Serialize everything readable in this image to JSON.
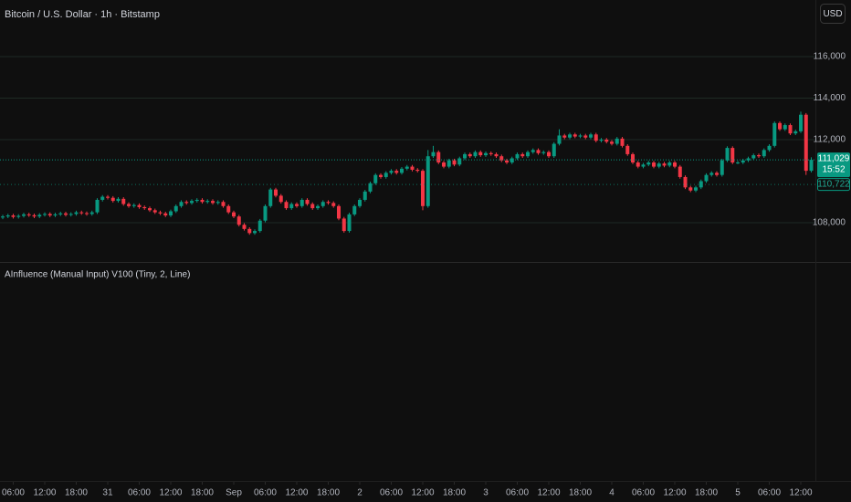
{
  "header": {
    "title": "Bitcoin / U.S. Dollar · 1h · Bitstamp",
    "currency_button": "USD"
  },
  "indicator": {
    "title": "AInfluence (Manual Input) V100 (Tiny, 2, Line)"
  },
  "chart_data": {
    "type": "candlestick",
    "up_color": "#089981",
    "down_color": "#f23645",
    "grid": true,
    "xlim": [
      -0.52,
      154.78
    ],
    "ylim": [
      106110,
      118725
    ],
    "yticks": [
      {
        "value": 116000,
        "label": "116,000"
      },
      {
        "value": 114000,
        "label": "114,000"
      },
      {
        "value": 112000,
        "label": "112,000"
      },
      {
        "value": 108000,
        "label": "108,000"
      }
    ],
    "xticks": [
      {
        "value": 2,
        "label": "06:00"
      },
      {
        "value": 8,
        "label": "12:00"
      },
      {
        "value": 14,
        "label": "18:00"
      },
      {
        "value": 20,
        "label": "31"
      },
      {
        "value": 26,
        "label": "06:00"
      },
      {
        "value": 32,
        "label": "12:00"
      },
      {
        "value": 38,
        "label": "18:00"
      },
      {
        "value": 44,
        "label": "Sep"
      },
      {
        "value": 50,
        "label": "06:00"
      },
      {
        "value": 56,
        "label": "12:00"
      },
      {
        "value": 62,
        "label": "18:00"
      },
      {
        "value": 68,
        "label": "2"
      },
      {
        "value": 74,
        "label": "06:00"
      },
      {
        "value": 80,
        "label": "12:00"
      },
      {
        "value": 86,
        "label": "18:00"
      },
      {
        "value": 92,
        "label": "3"
      },
      {
        "value": 98,
        "label": "06:00"
      },
      {
        "value": 104,
        "label": "12:00"
      },
      {
        "value": 110,
        "label": "18:00"
      },
      {
        "value": 116,
        "label": "4"
      },
      {
        "value": 122,
        "label": "06:00"
      },
      {
        "value": 128,
        "label": "12:00"
      },
      {
        "value": 134,
        "label": "18:00"
      },
      {
        "value": 140,
        "label": "5"
      },
      {
        "value": 146,
        "label": "06:00"
      },
      {
        "value": 152,
        "label": "12:00"
      }
    ],
    "last_price": {
      "value": 111029,
      "label": "111,029"
    },
    "countdown": "15:52",
    "indicator_price": {
      "value": 110722,
      "label": "110,722"
    },
    "x": [
      0,
      1,
      2,
      3,
      4,
      5,
      6,
      7,
      8,
      9,
      10,
      11,
      12,
      13,
      14,
      15,
      16,
      17,
      18,
      19,
      20,
      21,
      22,
      23,
      24,
      25,
      26,
      27,
      28,
      29,
      30,
      31,
      32,
      33,
      34,
      35,
      36,
      37,
      38,
      39,
      40,
      41,
      42,
      43,
      44,
      45,
      46,
      47,
      48,
      49,
      50,
      51,
      52,
      53,
      54,
      55,
      56,
      57,
      58,
      59,
      60,
      61,
      62,
      63,
      64,
      65,
      66,
      67,
      68,
      69,
      70,
      71,
      72,
      73,
      74,
      75,
      76,
      77,
      78,
      79,
      80,
      81,
      82,
      83,
      84,
      85,
      86,
      87,
      88,
      89,
      90,
      91,
      92,
      93,
      94,
      95,
      96,
      97,
      98,
      99,
      100,
      101,
      102,
      103,
      104,
      105,
      106,
      107,
      108,
      109,
      110,
      111,
      112,
      113,
      114,
      115,
      116,
      117,
      118,
      119,
      120,
      121,
      122,
      123,
      124,
      125,
      126,
      127,
      128,
      129,
      130,
      131,
      132,
      133,
      134,
      135,
      136,
      137,
      138,
      139,
      140,
      141,
      142,
      143,
      144,
      145,
      146,
      147,
      148,
      149,
      150,
      151,
      152,
      153,
      154
    ],
    "open": [
      108250,
      108300,
      108350,
      108280,
      108330,
      108400,
      108360,
      108300,
      108380,
      108420,
      108350,
      108400,
      108450,
      108380,
      108420,
      108500,
      108460,
      108420,
      108500,
      109100,
      109250,
      109200,
      109050,
      109150,
      108900,
      108800,
      108850,
      108750,
      108700,
      108600,
      108500,
      108450,
      108350,
      108550,
      108800,
      109000,
      108950,
      109050,
      109100,
      109000,
      109050,
      108950,
      109000,
      108800,
      108500,
      108300,
      107900,
      107700,
      107500,
      107600,
      108100,
      108800,
      109600,
      109300,
      109000,
      108700,
      108900,
      108800,
      109100,
      108900,
      108700,
      108800,
      109000,
      108950,
      108800,
      108200,
      107600,
      108400,
      108800,
      109100,
      109500,
      109900,
      110300,
      110200,
      110400,
      110500,
      110400,
      110600,
      110700,
      110550,
      110500,
      108800,
      111200,
      111400,
      110900,
      110700,
      111000,
      110800,
      111100,
      111300,
      111200,
      111400,
      111250,
      111350,
      111300,
      111200,
      111000,
      110900,
      111100,
      111300,
      111200,
      111400,
      111500,
      111350,
      111400,
      111200,
      111800,
      112200,
      112100,
      112250,
      112150,
      112200,
      112100,
      112250,
      111950,
      112000,
      111900,
      111800,
      112050,
      111700,
      111300,
      110900,
      110700,
      110800,
      110900,
      110700,
      110850,
      110750,
      110900,
      110700,
      110200,
      109700,
      109550,
      109700,
      110000,
      110300,
      110400,
      110300,
      111000,
      111600,
      110900,
      110900,
      111000,
      111100,
      111250,
      111200,
      111500,
      111700,
      112800,
      112500,
      112700,
      112300,
      112400,
      113200,
      110500
    ],
    "high": [
      108380,
      108430,
      108430,
      108410,
      108480,
      108480,
      108440,
      108460,
      108500,
      108500,
      108480,
      108530,
      108530,
      108500,
      108580,
      108580,
      108540,
      108580,
      109180,
      109330,
      109330,
      109280,
      109230,
      109230,
      108980,
      108930,
      108930,
      108830,
      108780,
      108680,
      108580,
      108530,
      108630,
      108880,
      109080,
      109080,
      109130,
      109180,
      109180,
      109130,
      109130,
      109080,
      109080,
      108880,
      108580,
      108380,
      107980,
      107780,
      107680,
      108180,
      108880,
      109680,
      109680,
      109380,
      109080,
      108980,
      108980,
      109180,
      109180,
      108980,
      108880,
      109080,
      109080,
      109030,
      108880,
      108280,
      108480,
      108880,
      109180,
      109580,
      109980,
      110380,
      110380,
      110480,
      110580,
      110580,
      110680,
      110780,
      110780,
      110630,
      110580,
      111500,
      111700,
      111480,
      110980,
      111080,
      111080,
      111180,
      111380,
      111380,
      111480,
      111480,
      111430,
      111430,
      111380,
      111280,
      111080,
      111180,
      111380,
      111380,
      111480,
      111580,
      111580,
      111480,
      111480,
      111880,
      112500,
      112280,
      112330,
      112330,
      112280,
      112280,
      112330,
      112330,
      112080,
      112080,
      111980,
      112130,
      112130,
      111780,
      111380,
      110980,
      110880,
      110980,
      110980,
      110930,
      110930,
      110980,
      110980,
      110780,
      110280,
      109780,
      109780,
      110080,
      110380,
      110480,
      110480,
      111080,
      111680,
      111680,
      110980,
      111080,
      111180,
      111330,
      111330,
      111580,
      111780,
      112880,
      112880,
      112780,
      112780,
      112480,
      113350,
      113280,
      111150
    ],
    "low": [
      108170,
      108220,
      108200,
      108200,
      108250,
      108280,
      108220,
      108220,
      108300,
      108270,
      108270,
      108320,
      108300,
      108300,
      108340,
      108380,
      108340,
      108340,
      108420,
      109020,
      109120,
      108970,
      108970,
      108820,
      108720,
      108720,
      108670,
      108620,
      108520,
      108420,
      108370,
      108270,
      108270,
      108470,
      108720,
      108870,
      108870,
      108970,
      108920,
      108920,
      108870,
      108870,
      108720,
      108420,
      108220,
      107820,
      107620,
      107420,
      107420,
      107520,
      108020,
      108720,
      109220,
      108920,
      108620,
      108620,
      108720,
      108720,
      108820,
      108620,
      108620,
      108720,
      108870,
      108720,
      108120,
      107520,
      107520,
      108320,
      108720,
      109020,
      109420,
      109820,
      110120,
      110120,
      110320,
      110320,
      110320,
      110520,
      110470,
      110420,
      108600,
      108720,
      111120,
      110820,
      110620,
      110620,
      110720,
      110720,
      111020,
      111120,
      111120,
      111170,
      111170,
      111220,
      111120,
      110920,
      110820,
      110820,
      111020,
      111120,
      111120,
      111320,
      111270,
      111270,
      111120,
      111120,
      111720,
      112020,
      112020,
      112070,
      112070,
      112020,
      112020,
      111870,
      111870,
      111820,
      111720,
      111720,
      111620,
      111220,
      110820,
      110620,
      110620,
      110720,
      110620,
      110620,
      110670,
      110670,
      110620,
      110120,
      109620,
      109470,
      109470,
      109620,
      109920,
      110220,
      110220,
      110220,
      110920,
      110820,
      110820,
      110820,
      110920,
      111020,
      111120,
      111120,
      111420,
      111620,
      112420,
      112420,
      112220,
      112220,
      112320,
      110300,
      110420
    ],
    "close": [
      108300,
      108350,
      108280,
      108330,
      108400,
      108360,
      108300,
      108380,
      108420,
      108350,
      108400,
      108450,
      108380,
      108420,
      108500,
      108460,
      108420,
      108500,
      109100,
      109250,
      109200,
      109050,
      109150,
      108900,
      108800,
      108850,
      108750,
      108700,
      108600,
      108500,
      108450,
      108350,
      108550,
      108800,
      109000,
      108950,
      109050,
      109100,
      109000,
      109050,
      108950,
      109000,
      108800,
      108500,
      108300,
      107900,
      107700,
      107500,
      107600,
      108100,
      108800,
      109600,
      109300,
      109000,
      108700,
      108900,
      108800,
      109100,
      108900,
      108700,
      108800,
      109000,
      108950,
      108800,
      108200,
      107600,
      108400,
      108800,
      109100,
      109500,
      109900,
      110300,
      110200,
      110400,
      110500,
      110400,
      110600,
      110700,
      110550,
      110500,
      108800,
      111200,
      111400,
      110900,
      110700,
      111000,
      110800,
      111100,
      111300,
      111200,
      111400,
      111250,
      111350,
      111300,
      111200,
      111000,
      110900,
      111100,
      111300,
      111200,
      111400,
      111500,
      111350,
      111400,
      111200,
      111800,
      112200,
      112100,
      112250,
      112150,
      112200,
      112100,
      112250,
      111950,
      112000,
      111900,
      111800,
      112050,
      111700,
      111300,
      110900,
      110700,
      110800,
      110900,
      110700,
      110850,
      110750,
      110900,
      110700,
      110200,
      109700,
      109550,
      109700,
      110000,
      110300,
      110400,
      110300,
      111000,
      111600,
      110900,
      110900,
      111000,
      111100,
      111250,
      111200,
      111500,
      111700,
      112800,
      112500,
      112700,
      112300,
      112400,
      113200,
      110500,
      111029
    ]
  }
}
